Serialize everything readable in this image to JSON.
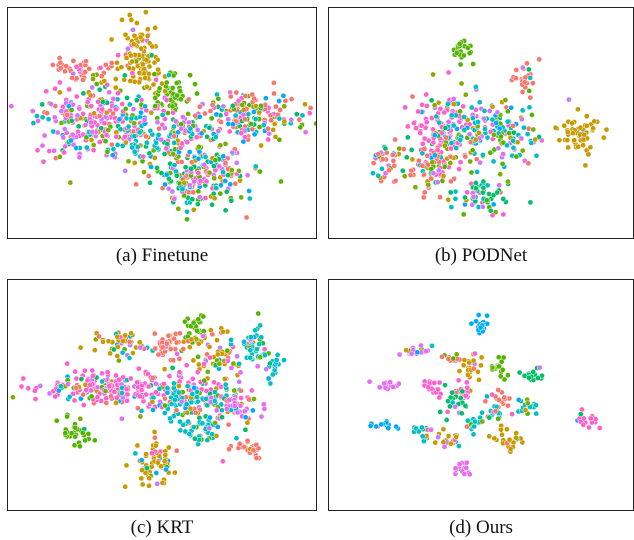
{
  "palette": [
    "#f8766d",
    "#c99a00",
    "#7cae00",
    "#00be67",
    "#00bfc4",
    "#00a9ff",
    "#c77cff",
    "#ff61cc",
    "#e76bf3",
    "#53b400"
  ],
  "chart_data": [
    {
      "type": "scatter",
      "caption": "(a) Finetune",
      "title": "",
      "xlabel": "",
      "ylabel": "",
      "grid": false,
      "legend": "none",
      "clusters": [
        {
          "x": 0.25,
          "y": 0.27,
          "sx": 0.05,
          "sy": 0.025,
          "n": 40,
          "color": 0,
          "mix": 0.1
        },
        {
          "x": 0.43,
          "y": 0.24,
          "sx": 0.04,
          "sy": 0.09,
          "n": 110,
          "color": 1,
          "mix": 0.1
        },
        {
          "x": 0.53,
          "y": 0.38,
          "sx": 0.035,
          "sy": 0.04,
          "n": 50,
          "color": 9,
          "mix": 0.05
        },
        {
          "x": 0.3,
          "y": 0.48,
          "sx": 0.1,
          "sy": 0.08,
          "n": 230,
          "color": 7,
          "mix": 0.7
        },
        {
          "x": 0.2,
          "y": 0.56,
          "sx": 0.04,
          "sy": 0.06,
          "n": 40,
          "color": 8,
          "mix": 0.4
        },
        {
          "x": 0.42,
          "y": 0.58,
          "sx": 0.06,
          "sy": 0.06,
          "n": 90,
          "color": 4,
          "mix": 0.6
        },
        {
          "x": 0.78,
          "y": 0.47,
          "sx": 0.09,
          "sy": 0.055,
          "n": 180,
          "color": 0,
          "mix": 0.75
        },
        {
          "x": 0.63,
          "y": 0.72,
          "sx": 0.08,
          "sy": 0.08,
          "n": 240,
          "color": 3,
          "mix": 0.8
        },
        {
          "x": 0.56,
          "y": 0.53,
          "sx": 0.04,
          "sy": 0.04,
          "n": 40,
          "color": 4,
          "mix": 0.8
        }
      ]
    },
    {
      "type": "scatter",
      "caption": "(b) PODNet",
      "title": "",
      "xlabel": "",
      "ylabel": "",
      "grid": false,
      "legend": "none",
      "clusters": [
        {
          "x": 0.44,
          "y": 0.18,
          "sx": 0.02,
          "sy": 0.025,
          "n": 25,
          "color": 9,
          "mix": 0.05
        },
        {
          "x": 0.65,
          "y": 0.31,
          "sx": 0.02,
          "sy": 0.03,
          "n": 25,
          "color": 0,
          "mix": 0.05
        },
        {
          "x": 0.82,
          "y": 0.55,
          "sx": 0.035,
          "sy": 0.05,
          "n": 55,
          "color": 1,
          "mix": 0.1
        },
        {
          "x": 0.37,
          "y": 0.55,
          "sx": 0.045,
          "sy": 0.09,
          "n": 140,
          "color": 7,
          "mix": 0.3
        },
        {
          "x": 0.52,
          "y": 0.55,
          "sx": 0.09,
          "sy": 0.07,
          "n": 190,
          "color": 4,
          "mix": 0.7
        },
        {
          "x": 0.33,
          "y": 0.68,
          "sx": 0.05,
          "sy": 0.06,
          "n": 60,
          "color": 0,
          "mix": 0.6
        },
        {
          "x": 0.19,
          "y": 0.66,
          "sx": 0.025,
          "sy": 0.05,
          "n": 35,
          "color": 0,
          "mix": 0.7
        },
        {
          "x": 0.5,
          "y": 0.82,
          "sx": 0.05,
          "sy": 0.04,
          "n": 60,
          "color": 3,
          "mix": 0.6
        }
      ]
    },
    {
      "type": "scatter",
      "caption": "(c) KRT",
      "title": "",
      "xlabel": "",
      "ylabel": "",
      "grid": false,
      "legend": "none",
      "clusters": [
        {
          "x": 0.6,
          "y": 0.21,
          "sx": 0.025,
          "sy": 0.03,
          "n": 30,
          "color": 9,
          "mix": 0.1
        },
        {
          "x": 0.38,
          "y": 0.28,
          "sx": 0.045,
          "sy": 0.03,
          "n": 50,
          "color": 1,
          "mix": 0.4
        },
        {
          "x": 0.52,
          "y": 0.28,
          "sx": 0.035,
          "sy": 0.03,
          "n": 40,
          "color": 0,
          "mix": 0.2
        },
        {
          "x": 0.68,
          "y": 0.33,
          "sx": 0.04,
          "sy": 0.06,
          "n": 70,
          "color": 1,
          "mix": 0.5
        },
        {
          "x": 0.8,
          "y": 0.28,
          "sx": 0.03,
          "sy": 0.05,
          "n": 45,
          "color": 4,
          "mix": 0.5
        },
        {
          "x": 0.86,
          "y": 0.38,
          "sx": 0.02,
          "sy": 0.03,
          "n": 25,
          "color": 4,
          "mix": 0.3
        },
        {
          "x": 0.35,
          "y": 0.47,
          "sx": 0.13,
          "sy": 0.035,
          "n": 230,
          "color": 7,
          "mix": 0.4
        },
        {
          "x": 0.58,
          "y": 0.52,
          "sx": 0.07,
          "sy": 0.05,
          "n": 120,
          "color": 4,
          "mix": 0.6
        },
        {
          "x": 0.74,
          "y": 0.55,
          "sx": 0.04,
          "sy": 0.04,
          "n": 55,
          "color": 8,
          "mix": 0.5
        },
        {
          "x": 0.63,
          "y": 0.64,
          "sx": 0.04,
          "sy": 0.04,
          "n": 45,
          "color": 4,
          "mix": 0.3
        },
        {
          "x": 0.22,
          "y": 0.67,
          "sx": 0.025,
          "sy": 0.025,
          "n": 30,
          "color": 9,
          "mix": 0.05
        },
        {
          "x": 0.47,
          "y": 0.8,
          "sx": 0.04,
          "sy": 0.05,
          "n": 70,
          "color": 1,
          "mix": 0.3
        },
        {
          "x": 0.78,
          "y": 0.73,
          "sx": 0.025,
          "sy": 0.025,
          "n": 30,
          "color": 0,
          "mix": 0.3
        }
      ]
    },
    {
      "type": "scatter",
      "caption": "(d) Ours",
      "title": "",
      "xlabel": "",
      "ylabel": "",
      "grid": false,
      "legend": "none",
      "clusters": [
        {
          "x": 0.5,
          "y": 0.19,
          "sx": 0.015,
          "sy": 0.02,
          "n": 20,
          "color": 5,
          "mix": 0.05
        },
        {
          "x": 0.29,
          "y": 0.31,
          "sx": 0.025,
          "sy": 0.01,
          "n": 20,
          "color": 8,
          "mix": 0.2
        },
        {
          "x": 0.4,
          "y": 0.34,
          "sx": 0.015,
          "sy": 0.01,
          "n": 12,
          "color": 0,
          "mix": 0.3
        },
        {
          "x": 0.47,
          "y": 0.37,
          "sx": 0.018,
          "sy": 0.03,
          "n": 25,
          "color": 1,
          "mix": 0.3
        },
        {
          "x": 0.56,
          "y": 0.38,
          "sx": 0.02,
          "sy": 0.02,
          "n": 18,
          "color": 9,
          "mix": 0.1
        },
        {
          "x": 0.67,
          "y": 0.42,
          "sx": 0.02,
          "sy": 0.02,
          "n": 18,
          "color": 3,
          "mix": 0.2
        },
        {
          "x": 0.19,
          "y": 0.46,
          "sx": 0.025,
          "sy": 0.01,
          "n": 18,
          "color": 8,
          "mix": 0.1
        },
        {
          "x": 0.34,
          "y": 0.47,
          "sx": 0.015,
          "sy": 0.02,
          "n": 18,
          "color": 7,
          "mix": 0.1
        },
        {
          "x": 0.44,
          "y": 0.49,
          "sx": 0.02,
          "sy": 0.025,
          "n": 20,
          "color": 7,
          "mix": 0.2
        },
        {
          "x": 0.56,
          "y": 0.52,
          "sx": 0.02,
          "sy": 0.02,
          "n": 20,
          "color": 0,
          "mix": 0.3
        },
        {
          "x": 0.41,
          "y": 0.54,
          "sx": 0.02,
          "sy": 0.03,
          "n": 20,
          "color": 3,
          "mix": 0.2
        },
        {
          "x": 0.55,
          "y": 0.58,
          "sx": 0.025,
          "sy": 0.015,
          "n": 18,
          "color": 4,
          "mix": 0.3
        },
        {
          "x": 0.66,
          "y": 0.55,
          "sx": 0.02,
          "sy": 0.02,
          "n": 18,
          "color": 4,
          "mix": 0.3
        },
        {
          "x": 0.19,
          "y": 0.63,
          "sx": 0.02,
          "sy": 0.01,
          "n": 16,
          "color": 5,
          "mix": 0.1
        },
        {
          "x": 0.48,
          "y": 0.63,
          "sx": 0.015,
          "sy": 0.02,
          "n": 14,
          "color": 4,
          "mix": 0.2
        },
        {
          "x": 0.31,
          "y": 0.67,
          "sx": 0.015,
          "sy": 0.02,
          "n": 16,
          "color": 4,
          "mix": 0.3
        },
        {
          "x": 0.39,
          "y": 0.69,
          "sx": 0.02,
          "sy": 0.02,
          "n": 20,
          "color": 1,
          "mix": 0.3
        },
        {
          "x": 0.6,
          "y": 0.7,
          "sx": 0.025,
          "sy": 0.025,
          "n": 25,
          "color": 1,
          "mix": 0.3
        },
        {
          "x": 0.84,
          "y": 0.61,
          "sx": 0.02,
          "sy": 0.015,
          "n": 16,
          "color": 7,
          "mix": 0.1
        },
        {
          "x": 0.44,
          "y": 0.82,
          "sx": 0.015,
          "sy": 0.02,
          "n": 16,
          "color": 8,
          "mix": 0.1
        }
      ]
    }
  ]
}
